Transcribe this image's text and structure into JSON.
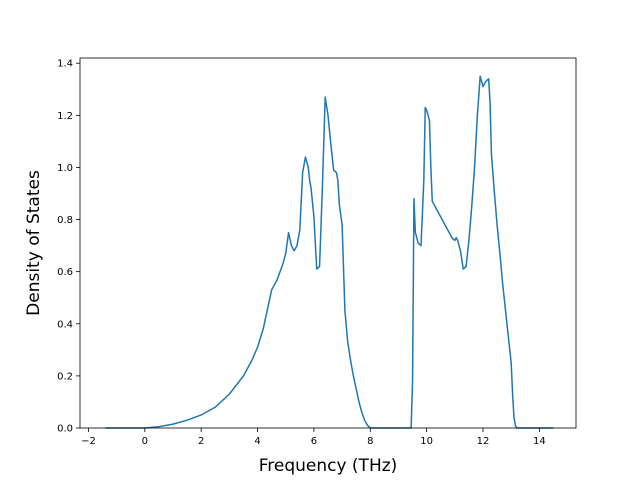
{
  "chart_data": {
    "type": "line",
    "title": "",
    "xlabel": "Frequency (THz)",
    "ylabel": "Density of States",
    "xlim": [
      -2.3,
      15.3
    ],
    "ylim": [
      0,
      1.42
    ],
    "xticks": [
      -2,
      0,
      2,
      4,
      6,
      8,
      10,
      12,
      14
    ],
    "yticks": [
      0.0,
      0.2,
      0.4,
      0.6,
      0.8,
      1.0,
      1.2,
      1.4
    ],
    "xtick_labels": [
      "−2",
      "0",
      "2",
      "4",
      "6",
      "8",
      "10",
      "12",
      "14"
    ],
    "ytick_labels": [
      "0.0",
      "0.2",
      "0.4",
      "0.6",
      "0.8",
      "1.0",
      "1.2",
      "1.4"
    ],
    "grid": false,
    "legend": "none",
    "series": [
      {
        "color": "#1f77b4",
        "x": [
          -1.4,
          0.0,
          0.5,
          1.0,
          1.5,
          2.0,
          2.5,
          3.0,
          3.5,
          3.8,
          4.0,
          4.2,
          4.3,
          4.5,
          4.7,
          4.8,
          4.9,
          5.0,
          5.1,
          5.2,
          5.3,
          5.4,
          5.5,
          5.6,
          5.7,
          5.8,
          5.85,
          5.9,
          6.0,
          6.1,
          6.2,
          6.3,
          6.4,
          6.5,
          6.6,
          6.7,
          6.8,
          6.85,
          6.9,
          7.0,
          7.1,
          7.2,
          7.3,
          7.4,
          7.5,
          7.6,
          7.7,
          7.8,
          7.9,
          7.95,
          8.0,
          9.45,
          9.5,
          9.55,
          9.6,
          9.7,
          9.8,
          9.9,
          9.95,
          10.0,
          10.05,
          10.1,
          10.15,
          10.2,
          10.3,
          10.4,
          10.5,
          10.6,
          10.7,
          10.8,
          10.9,
          11.0,
          11.05,
          11.1,
          11.2,
          11.3,
          11.4,
          11.5,
          11.6,
          11.7,
          11.8,
          11.9,
          12.0,
          12.1,
          12.2,
          12.25,
          12.3,
          12.4,
          12.5,
          12.6,
          12.7,
          12.8,
          12.9,
          13.0,
          13.05,
          13.1,
          13.15,
          13.2,
          14.5
        ],
        "y": [
          0.0,
          0.0,
          0.005,
          0.015,
          0.03,
          0.05,
          0.08,
          0.13,
          0.2,
          0.26,
          0.31,
          0.38,
          0.43,
          0.53,
          0.57,
          0.6,
          0.63,
          0.67,
          0.75,
          0.7,
          0.68,
          0.7,
          0.76,
          0.98,
          1.04,
          1.0,
          0.95,
          0.92,
          0.81,
          0.61,
          0.62,
          0.92,
          1.27,
          1.2,
          1.09,
          0.99,
          0.98,
          0.95,
          0.86,
          0.78,
          0.45,
          0.33,
          0.26,
          0.2,
          0.15,
          0.1,
          0.06,
          0.03,
          0.01,
          0.005,
          0.0,
          0.0,
          0.18,
          0.88,
          0.75,
          0.71,
          0.7,
          0.95,
          1.23,
          1.22,
          1.2,
          1.18,
          1.0,
          0.87,
          0.85,
          0.83,
          0.81,
          0.79,
          0.77,
          0.75,
          0.73,
          0.72,
          0.73,
          0.72,
          0.68,
          0.61,
          0.62,
          0.72,
          0.85,
          1.0,
          1.2,
          1.35,
          1.31,
          1.33,
          1.34,
          1.25,
          1.05,
          0.91,
          0.78,
          0.67,
          0.55,
          0.45,
          0.35,
          0.25,
          0.13,
          0.04,
          0.01,
          0.0,
          0.0
        ]
      }
    ]
  }
}
